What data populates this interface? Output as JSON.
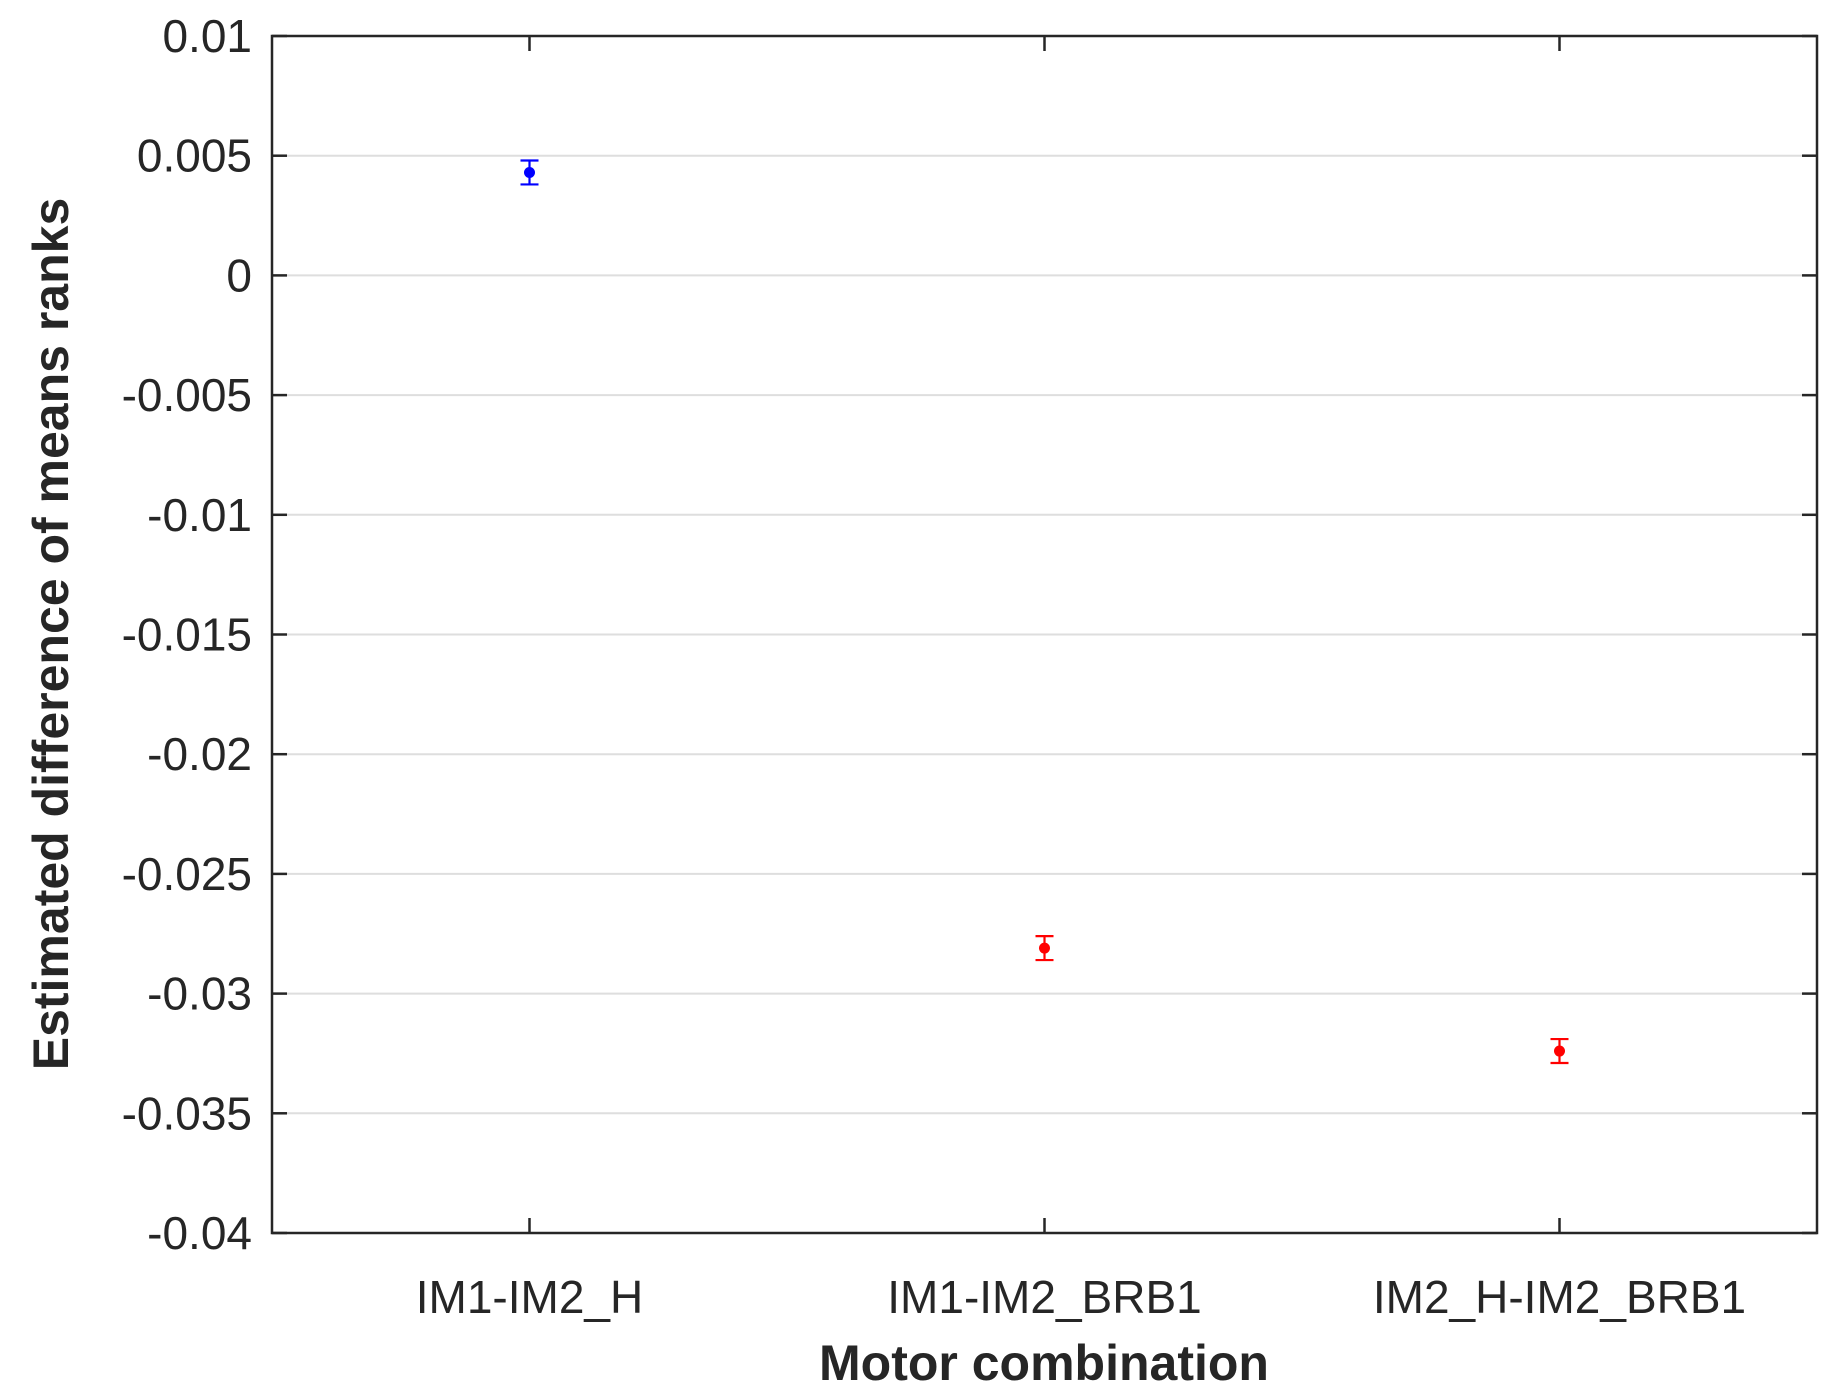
{
  "chart_data": {
    "type": "scatter",
    "title": "",
    "xlabel": "Motor combination",
    "ylabel": "Estimated difference of means ranks",
    "categories": [
      "IM1-IM2_H",
      "IM1-IM2_BRB1",
      "IM2_H-IM2_BRB1"
    ],
    "ylim": [
      -0.04,
      0.01
    ],
    "yticks": [
      0.01,
      0.005,
      0,
      -0.005,
      -0.01,
      -0.015,
      -0.02,
      -0.025,
      -0.03,
      -0.035,
      -0.04
    ],
    "ytick_labels": [
      "0.01",
      "0.005",
      "0",
      "-0.005",
      "-0.01",
      "-0.015",
      "-0.02",
      "-0.025",
      "-0.03",
      "-0.035",
      "-0.04"
    ],
    "grid": "horizontal",
    "points": [
      {
        "category": "IM1-IM2_H",
        "value": 0.0043,
        "lower": 0.0038,
        "upper": 0.0048,
        "color": "#0000ff"
      },
      {
        "category": "IM1-IM2_BRB1",
        "value": -0.0281,
        "lower": -0.0286,
        "upper": -0.0276,
        "color": "#ff0000"
      },
      {
        "category": "IM2_H-IM2_BRB1",
        "value": -0.0324,
        "lower": -0.0329,
        "upper": -0.0319,
        "color": "#ff0000"
      }
    ]
  }
}
